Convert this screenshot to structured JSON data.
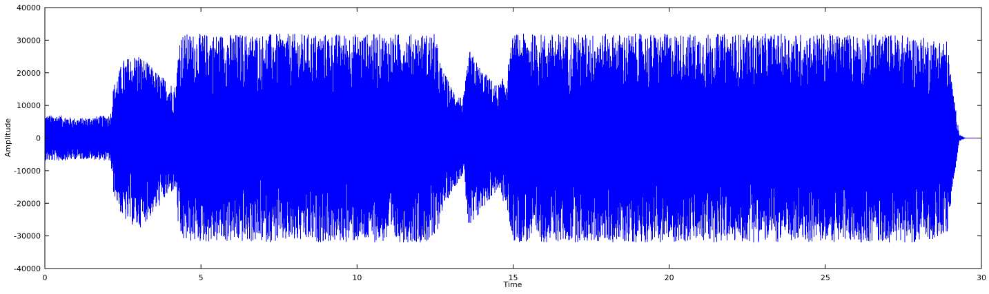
{
  "chart_data": {
    "type": "line",
    "title": "",
    "xlabel": "Time",
    "ylabel": "Amplitude",
    "xlim": [
      0,
      30
    ],
    "ylim": [
      -40000,
      40000
    ],
    "x_ticks": [
      0,
      5,
      10,
      15,
      20,
      25,
      30
    ],
    "y_ticks": [
      -40000,
      -30000,
      -20000,
      -10000,
      0,
      10000,
      20000,
      30000,
      40000
    ],
    "grid": false,
    "legend": "none",
    "line_color": "#0000ff",
    "series": [
      {
        "x": [
          0,
          0.5,
          1,
          1.5,
          2,
          2.1,
          2.2,
          2.5,
          3,
          3.5,
          4,
          4.2,
          4.3,
          5,
          6,
          7,
          8,
          9,
          10,
          11,
          12,
          12.5,
          12.7,
          13,
          13.4,
          13.6,
          14,
          14.5,
          14.8,
          15,
          16,
          17,
          18,
          19,
          20,
          21,
          22,
          23,
          24,
          25,
          26,
          27,
          27.2,
          28,
          28.9,
          29.1,
          29.3,
          29.5,
          30
        ],
        "envelope_max": [
          7000,
          7000,
          6000,
          6500,
          7000,
          7000,
          16000,
          24000,
          26000,
          21000,
          17000,
          16000,
          32000,
          32000,
          32000,
          32000,
          32000,
          32000,
          32000,
          32000,
          32000,
          32000,
          22000,
          16000,
          12000,
          27000,
          21000,
          16000,
          20000,
          32000,
          32000,
          32000,
          32000,
          32000,
          32000,
          32000,
          32000,
          32000,
          32000,
          32000,
          32000,
          32000,
          32000,
          31000,
          30000,
          14000,
          1000,
          0,
          0
        ],
        "envelope_min": [
          -7000,
          -7000,
          -6500,
          -6500,
          -7000,
          -7000,
          -17000,
          -25000,
          -28000,
          -23000,
          -17000,
          -16000,
          -32000,
          -32000,
          -32000,
          -32000,
          -32000,
          -32000,
          -32000,
          -32000,
          -32000,
          -32000,
          -23000,
          -17000,
          -11000,
          -30000,
          -22000,
          -16000,
          -22000,
          -32000,
          -32000,
          -32000,
          -32000,
          -32000,
          -32000,
          -32000,
          -32000,
          -32000,
          -32000,
          -32000,
          -32000,
          -32000,
          -32000,
          -32000,
          -30000,
          -14000,
          -1000,
          0,
          0
        ]
      }
    ]
  }
}
